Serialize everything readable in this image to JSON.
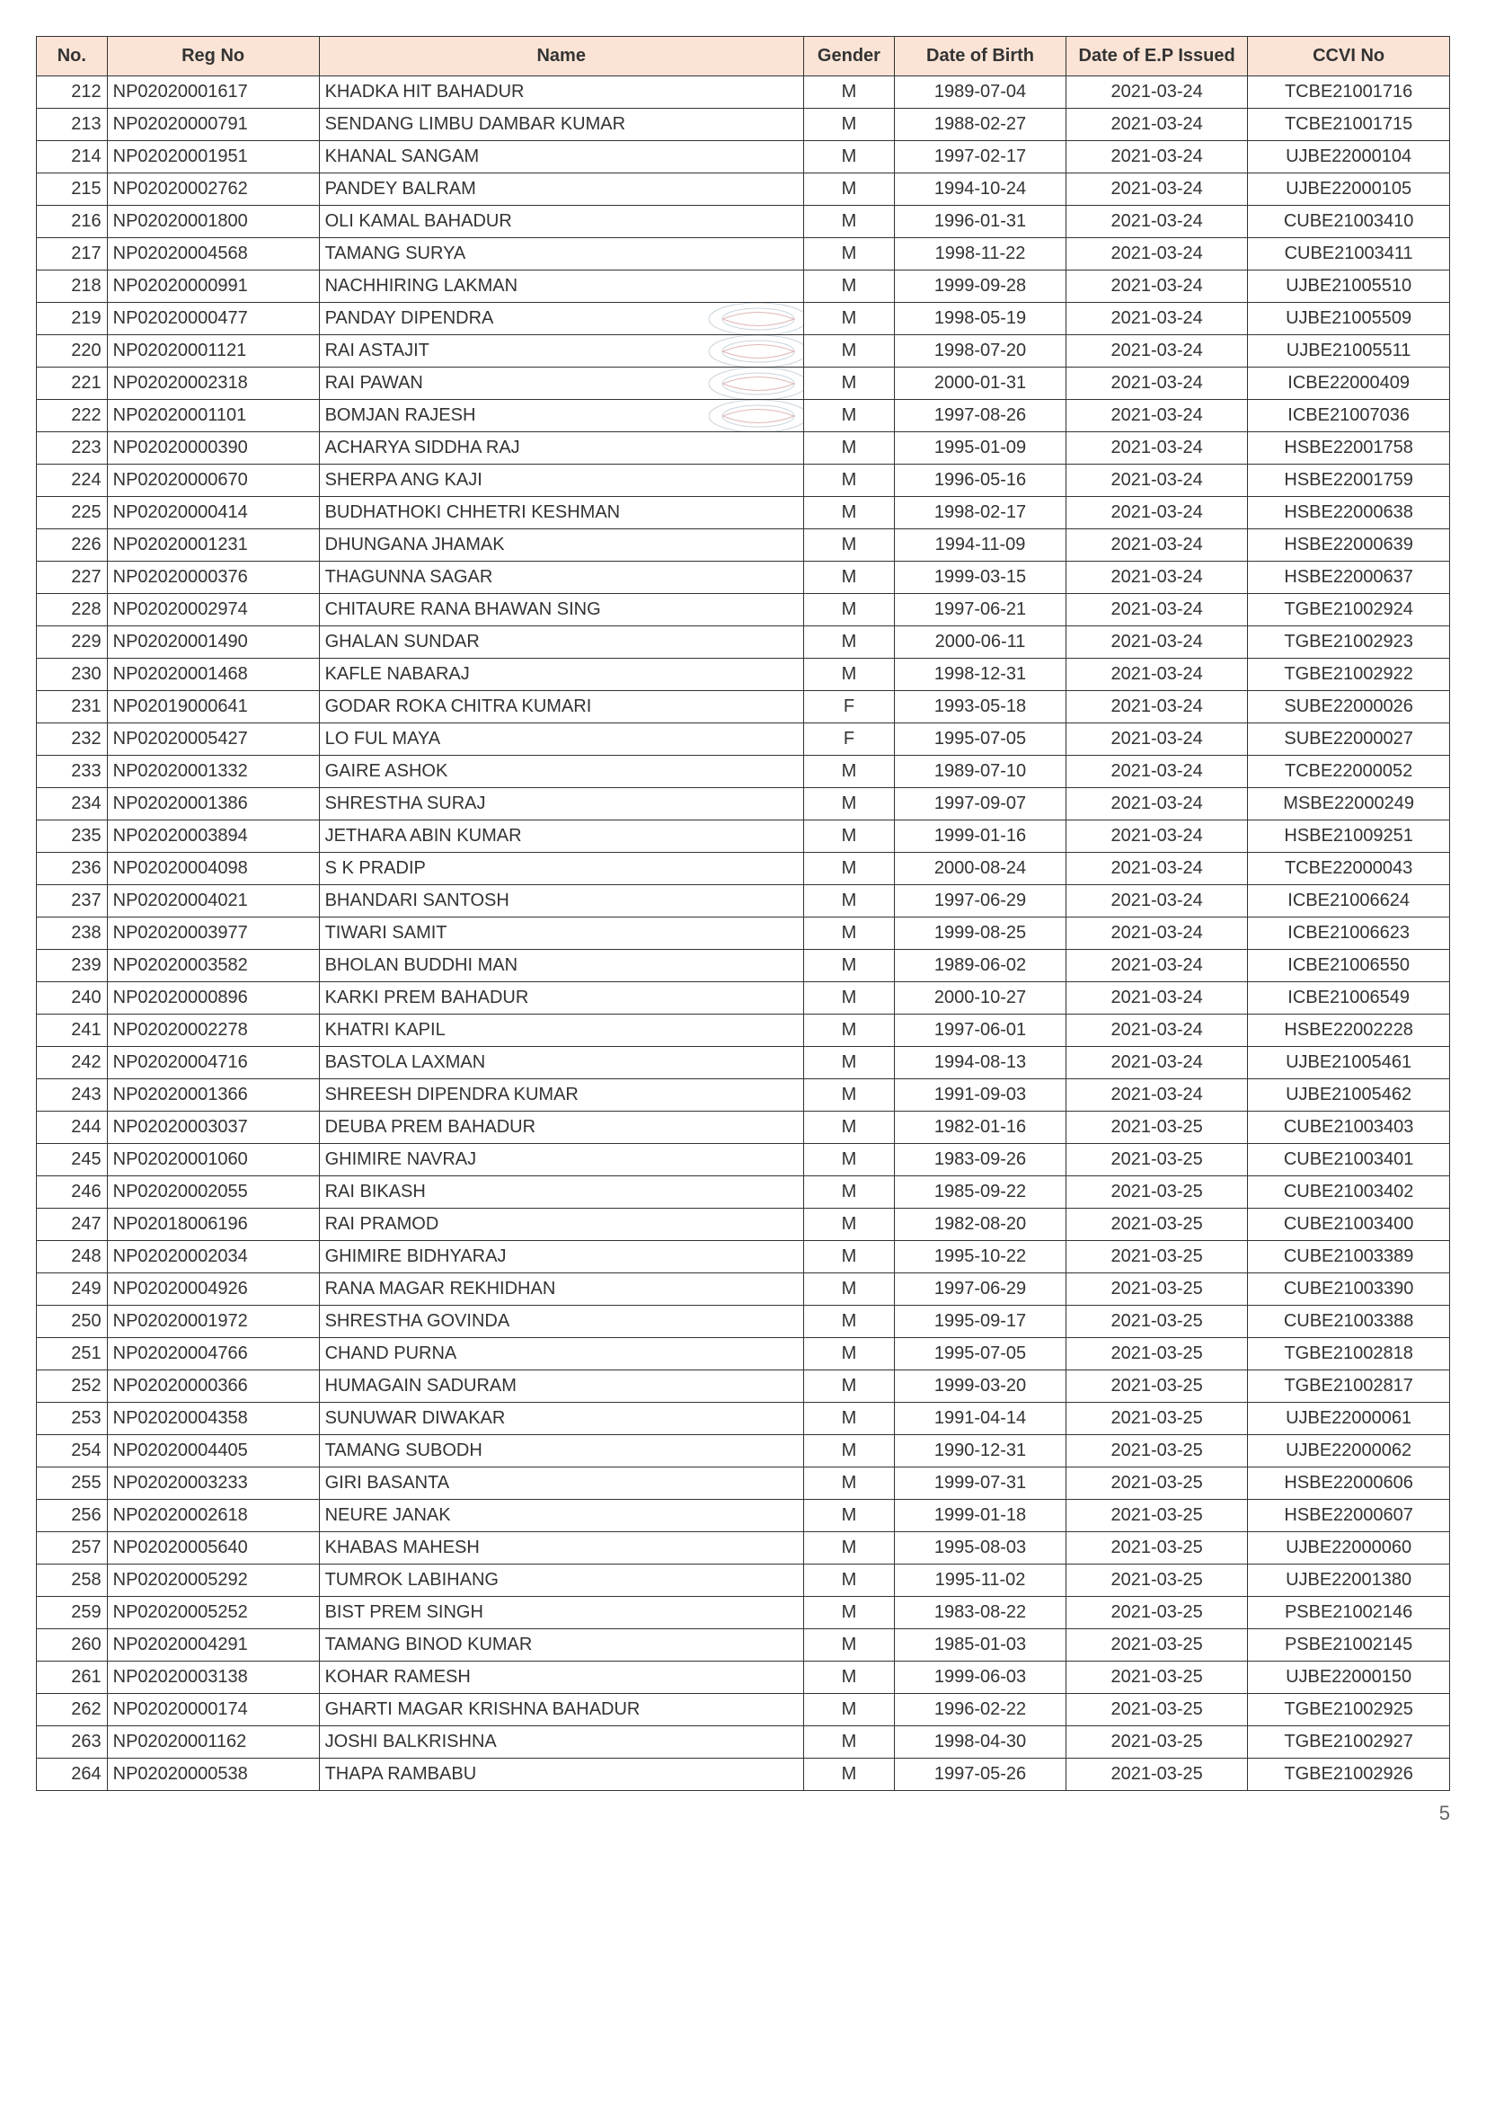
{
  "table": {
    "columns": [
      "No.",
      "Reg No",
      "Name",
      "Gender",
      "Date of Birth",
      "Date of E.P Issued",
      "CCVI No"
    ],
    "header_bg": "#fbe4d5",
    "border_color": "#333333",
    "rows": [
      {
        "no": 212,
        "reg": "NP02020001617",
        "name": "KHADKA HIT BAHADUR",
        "gender": "M",
        "dob": "1989-07-04",
        "ep": "2021-03-24",
        "ccvi": "TCBE21001716"
      },
      {
        "no": 213,
        "reg": "NP02020000791",
        "name": "SENDANG LIMBU DAMBAR KUMAR",
        "gender": "M",
        "dob": "1988-02-27",
        "ep": "2021-03-24",
        "ccvi": "TCBE21001715"
      },
      {
        "no": 214,
        "reg": "NP02020001951",
        "name": "KHANAL SANGAM",
        "gender": "M",
        "dob": "1997-02-17",
        "ep": "2021-03-24",
        "ccvi": "UJBE22000104"
      },
      {
        "no": 215,
        "reg": "NP02020002762",
        "name": "PANDEY BALRAM",
        "gender": "M",
        "dob": "1994-10-24",
        "ep": "2021-03-24",
        "ccvi": "UJBE22000105"
      },
      {
        "no": 216,
        "reg": "NP02020001800",
        "name": "OLI KAMAL BAHADUR",
        "gender": "M",
        "dob": "1996-01-31",
        "ep": "2021-03-24",
        "ccvi": "CUBE21003410"
      },
      {
        "no": 217,
        "reg": "NP02020004568",
        "name": "TAMANG SURYA",
        "gender": "M",
        "dob": "1998-11-22",
        "ep": "2021-03-24",
        "ccvi": "CUBE21003411"
      },
      {
        "no": 218,
        "reg": "NP02020000991",
        "name": "NACHHIRING LAKMAN",
        "gender": "M",
        "dob": "1999-09-28",
        "ep": "2021-03-24",
        "ccvi": "UJBE21005510"
      },
      {
        "no": 219,
        "reg": "NP02020000477",
        "name": "PANDAY DIPENDRA",
        "gender": "M",
        "dob": "1998-05-19",
        "ep": "2021-03-24",
        "ccvi": "UJBE21005509"
      },
      {
        "no": 220,
        "reg": "NP02020001121",
        "name": "RAI ASTAJIT",
        "gender": "M",
        "dob": "1998-07-20",
        "ep": "2021-03-24",
        "ccvi": "UJBE21005511"
      },
      {
        "no": 221,
        "reg": "NP02020002318",
        "name": "RAI PAWAN",
        "gender": "M",
        "dob": "2000-01-31",
        "ep": "2021-03-24",
        "ccvi": "ICBE22000409"
      },
      {
        "no": 222,
        "reg": "NP02020001101",
        "name": "BOMJAN RAJESH",
        "gender": "M",
        "dob": "1997-08-26",
        "ep": "2021-03-24",
        "ccvi": "ICBE21007036"
      },
      {
        "no": 223,
        "reg": "NP02020000390",
        "name": "ACHARYA SIDDHA RAJ",
        "gender": "M",
        "dob": "1995-01-09",
        "ep": "2021-03-24",
        "ccvi": "HSBE22001758"
      },
      {
        "no": 224,
        "reg": "NP02020000670",
        "name": "SHERPA ANG KAJI",
        "gender": "M",
        "dob": "1996-05-16",
        "ep": "2021-03-24",
        "ccvi": "HSBE22001759"
      },
      {
        "no": 225,
        "reg": "NP02020000414",
        "name": "BUDHATHOKI CHHETRI KESHMAN",
        "gender": "M",
        "dob": "1998-02-17",
        "ep": "2021-03-24",
        "ccvi": "HSBE22000638"
      },
      {
        "no": 226,
        "reg": "NP02020001231",
        "name": "DHUNGANA JHAMAK",
        "gender": "M",
        "dob": "1994-11-09",
        "ep": "2021-03-24",
        "ccvi": "HSBE22000639"
      },
      {
        "no": 227,
        "reg": "NP02020000376",
        "name": "THAGUNNA SAGAR",
        "gender": "M",
        "dob": "1999-03-15",
        "ep": "2021-03-24",
        "ccvi": "HSBE22000637"
      },
      {
        "no": 228,
        "reg": "NP02020002974",
        "name": "CHITAURE RANA BHAWAN SING",
        "gender": "M",
        "dob": "1997-06-21",
        "ep": "2021-03-24",
        "ccvi": "TGBE21002924"
      },
      {
        "no": 229,
        "reg": "NP02020001490",
        "name": "GHALAN SUNDAR",
        "gender": "M",
        "dob": "2000-06-11",
        "ep": "2021-03-24",
        "ccvi": "TGBE21002923"
      },
      {
        "no": 230,
        "reg": "NP02020001468",
        "name": "KAFLE NABARAJ",
        "gender": "M",
        "dob": "1998-12-31",
        "ep": "2021-03-24",
        "ccvi": "TGBE21002922"
      },
      {
        "no": 231,
        "reg": "NP02019000641",
        "name": "GODAR ROKA CHITRA KUMARI",
        "gender": "F",
        "dob": "1993-05-18",
        "ep": "2021-03-24",
        "ccvi": "SUBE22000026"
      },
      {
        "no": 232,
        "reg": "NP02020005427",
        "name": "LO FUL MAYA",
        "gender": "F",
        "dob": "1995-07-05",
        "ep": "2021-03-24",
        "ccvi": "SUBE22000027"
      },
      {
        "no": 233,
        "reg": "NP02020001332",
        "name": "GAIRE ASHOK",
        "gender": "M",
        "dob": "1989-07-10",
        "ep": "2021-03-24",
        "ccvi": "TCBE22000052"
      },
      {
        "no": 234,
        "reg": "NP02020001386",
        "name": "SHRESTHA SURAJ",
        "gender": "M",
        "dob": "1997-09-07",
        "ep": "2021-03-24",
        "ccvi": "MSBE22000249"
      },
      {
        "no": 235,
        "reg": "NP02020003894",
        "name": "JETHARA ABIN KUMAR",
        "gender": "M",
        "dob": "1999-01-16",
        "ep": "2021-03-24",
        "ccvi": "HSBE21009251"
      },
      {
        "no": 236,
        "reg": "NP02020004098",
        "name": "S K PRADIP",
        "gender": "M",
        "dob": "2000-08-24",
        "ep": "2021-03-24",
        "ccvi": "TCBE22000043"
      },
      {
        "no": 237,
        "reg": "NP02020004021",
        "name": "BHANDARI SANTOSH",
        "gender": "M",
        "dob": "1997-06-29",
        "ep": "2021-03-24",
        "ccvi": "ICBE21006624"
      },
      {
        "no": 238,
        "reg": "NP02020003977",
        "name": "TIWARI SAMIT",
        "gender": "M",
        "dob": "1999-08-25",
        "ep": "2021-03-24",
        "ccvi": "ICBE21006623"
      },
      {
        "no": 239,
        "reg": "NP02020003582",
        "name": "BHOLAN BUDDHI MAN",
        "gender": "M",
        "dob": "1989-06-02",
        "ep": "2021-03-24",
        "ccvi": "ICBE21006550"
      },
      {
        "no": 240,
        "reg": "NP02020000896",
        "name": "KARKI PREM BAHADUR",
        "gender": "M",
        "dob": "2000-10-27",
        "ep": "2021-03-24",
        "ccvi": "ICBE21006549"
      },
      {
        "no": 241,
        "reg": "NP02020002278",
        "name": "KHATRI KAPIL",
        "gender": "M",
        "dob": "1997-06-01",
        "ep": "2021-03-24",
        "ccvi": "HSBE22002228"
      },
      {
        "no": 242,
        "reg": "NP02020004716",
        "name": "BASTOLA LAXMAN",
        "gender": "M",
        "dob": "1994-08-13",
        "ep": "2021-03-24",
        "ccvi": "UJBE21005461"
      },
      {
        "no": 243,
        "reg": "NP02020001366",
        "name": "SHREESH DIPENDRA KUMAR",
        "gender": "M",
        "dob": "1991-09-03",
        "ep": "2021-03-24",
        "ccvi": "UJBE21005462"
      },
      {
        "no": 244,
        "reg": "NP02020003037",
        "name": "DEUBA PREM BAHADUR",
        "gender": "M",
        "dob": "1982-01-16",
        "ep": "2021-03-25",
        "ccvi": "CUBE21003403"
      },
      {
        "no": 245,
        "reg": "NP02020001060",
        "name": "GHIMIRE NAVRAJ",
        "gender": "M",
        "dob": "1983-09-26",
        "ep": "2021-03-25",
        "ccvi": "CUBE21003401"
      },
      {
        "no": 246,
        "reg": "NP02020002055",
        "name": "RAI BIKASH",
        "gender": "M",
        "dob": "1985-09-22",
        "ep": "2021-03-25",
        "ccvi": "CUBE21003402"
      },
      {
        "no": 247,
        "reg": "NP02018006196",
        "name": "RAI PRAMOD",
        "gender": "M",
        "dob": "1982-08-20",
        "ep": "2021-03-25",
        "ccvi": "CUBE21003400"
      },
      {
        "no": 248,
        "reg": "NP02020002034",
        "name": "GHIMIRE BIDHYARAJ",
        "gender": "M",
        "dob": "1995-10-22",
        "ep": "2021-03-25",
        "ccvi": "CUBE21003389"
      },
      {
        "no": 249,
        "reg": "NP02020004926",
        "name": "RANA MAGAR REKHIDHAN",
        "gender": "M",
        "dob": "1997-06-29",
        "ep": "2021-03-25",
        "ccvi": "CUBE21003390"
      },
      {
        "no": 250,
        "reg": "NP02020001972",
        "name": "SHRESTHA GOVINDA",
        "gender": "M",
        "dob": "1995-09-17",
        "ep": "2021-03-25",
        "ccvi": "CUBE21003388"
      },
      {
        "no": 251,
        "reg": "NP02020004766",
        "name": "CHAND PURNA",
        "gender": "M",
        "dob": "1995-07-05",
        "ep": "2021-03-25",
        "ccvi": "TGBE21002818"
      },
      {
        "no": 252,
        "reg": "NP02020000366",
        "name": "HUMAGAIN SADURAM",
        "gender": "M",
        "dob": "1999-03-20",
        "ep": "2021-03-25",
        "ccvi": "TGBE21002817"
      },
      {
        "no": 253,
        "reg": "NP02020004358",
        "name": "SUNUWAR DIWAKAR",
        "gender": "M",
        "dob": "1991-04-14",
        "ep": "2021-03-25",
        "ccvi": "UJBE22000061"
      },
      {
        "no": 254,
        "reg": "NP02020004405",
        "name": "TAMANG SUBODH",
        "gender": "M",
        "dob": "1990-12-31",
        "ep": "2021-03-25",
        "ccvi": "UJBE22000062"
      },
      {
        "no": 255,
        "reg": "NP02020003233",
        "name": "GIRI BASANTA",
        "gender": "M",
        "dob": "1999-07-31",
        "ep": "2021-03-25",
        "ccvi": "HSBE22000606"
      },
      {
        "no": 256,
        "reg": "NP02020002618",
        "name": "NEURE JANAK",
        "gender": "M",
        "dob": "1999-01-18",
        "ep": "2021-03-25",
        "ccvi": "HSBE22000607"
      },
      {
        "no": 257,
        "reg": "NP02020005640",
        "name": "KHABAS MAHESH",
        "gender": "M",
        "dob": "1995-08-03",
        "ep": "2021-03-25",
        "ccvi": "UJBE22000060"
      },
      {
        "no": 258,
        "reg": "NP02020005292",
        "name": "TUMROK LABIHANG",
        "gender": "M",
        "dob": "1995-11-02",
        "ep": "2021-03-25",
        "ccvi": "UJBE22001380"
      },
      {
        "no": 259,
        "reg": "NP02020005252",
        "name": "BIST PREM SINGH",
        "gender": "M",
        "dob": "1983-08-22",
        "ep": "2021-03-25",
        "ccvi": "PSBE21002146"
      },
      {
        "no": 260,
        "reg": "NP02020004291",
        "name": "TAMANG BINOD KUMAR",
        "gender": "M",
        "dob": "1985-01-03",
        "ep": "2021-03-25",
        "ccvi": "PSBE21002145"
      },
      {
        "no": 261,
        "reg": "NP02020003138",
        "name": "KOHAR RAMESH",
        "gender": "M",
        "dob": "1999-06-03",
        "ep": "2021-03-25",
        "ccvi": "UJBE22000150"
      },
      {
        "no": 262,
        "reg": "NP02020000174",
        "name": "GHARTI MAGAR KRISHNA BAHADUR",
        "gender": "M",
        "dob": "1996-02-22",
        "ep": "2021-03-25",
        "ccvi": "TGBE21002925"
      },
      {
        "no": 263,
        "reg": "NP02020001162",
        "name": "JOSHI BALKRISHNA",
        "gender": "M",
        "dob": "1998-04-30",
        "ep": "2021-03-25",
        "ccvi": "TGBE21002927"
      },
      {
        "no": 264,
        "reg": "NP02020000538",
        "name": "THAPA RAMBABU",
        "gender": "M",
        "dob": "1997-05-26",
        "ep": "2021-03-25",
        "ccvi": "TGBE21002926"
      }
    ]
  },
  "watermark": {
    "row_indices": [
      7,
      8,
      9,
      10
    ],
    "color": "#6b8aa0",
    "text_color": "#a03030"
  },
  "page_number": "5"
}
